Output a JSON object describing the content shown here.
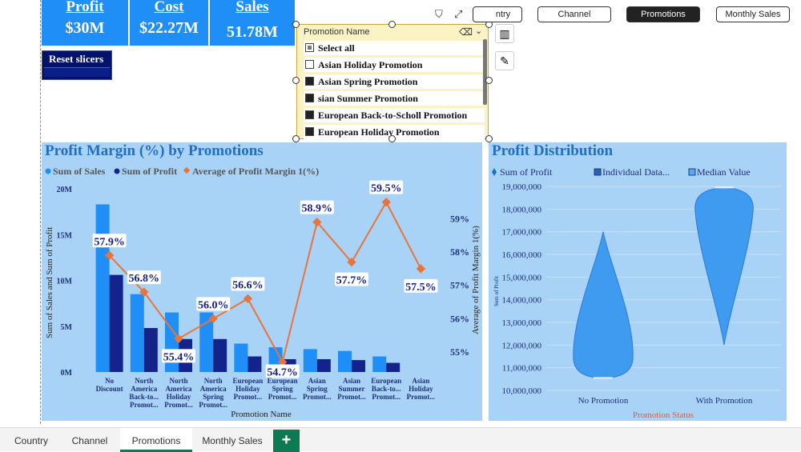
{
  "kpis": {
    "profit": {
      "title": "Profit",
      "value": "$30M"
    },
    "cost": {
      "title": "Cost",
      "value": "$22.27M"
    },
    "sales": {
      "title": "Sales",
      "value": "51.78M"
    }
  },
  "reset_label": "Reset slicers",
  "slicer": {
    "header": "Promotion Name",
    "items": [
      {
        "label": "Select all",
        "state": "partial"
      },
      {
        "label": "Asian Holiday Promotion",
        "state": "off"
      },
      {
        "label": "Asian Spring Promotion",
        "state": "on"
      },
      {
        "label": "sian Summer Promotion",
        "state": "on"
      },
      {
        "label": "European Back-to-Scholl Promotion",
        "state": "on"
      },
      {
        "label": "European Holiday Promotion",
        "state": "on"
      }
    ]
  },
  "filter_pills": [
    {
      "label": "ntry",
      "active": false
    },
    {
      "label": "Channel",
      "active": false
    },
    {
      "label": "Promotions",
      "active": true
    },
    {
      "label": "Monthly Sales",
      "active": false
    }
  ],
  "colors": {
    "sales": "#1f8ff7",
    "profit": "#13238c",
    "margin": "#e8743b",
    "panel": "#a9d3f6",
    "violin": "#3f9bf0"
  },
  "chart_data": [
    {
      "type": "bar",
      "title": "Profit Margin (%) by Promotions",
      "legend": [
        "Sum of Sales",
        "Sum of Profit",
        "Average of Profit Margin 1(%)"
      ],
      "xlabel": "Promotion Name",
      "ylabel": "Sum of Sales and Sum of Profit",
      "y2label": "Average of Profit Margin 1(%)",
      "ylim": [
        0,
        20000000
      ],
      "yticks": [
        "0M",
        "5M",
        "10M",
        "15M",
        "20M"
      ],
      "y2lim": [
        54.4,
        59.9
      ],
      "y2ticks": [
        "55%",
        "56%",
        "57%",
        "58%",
        "59%"
      ],
      "categories": [
        "No Discount",
        "North America Back-to... Promot...",
        "North America Holiday Promot...",
        "North America Spring Promot...",
        "European Holiday Promot...",
        "European Spring Promot...",
        "Asian Spring Promot...",
        "Asian Summer Promot...",
        "European Back-to... Promot...",
        "Asian Holiday Promot..."
      ],
      "series": [
        {
          "name": "Sum of Sales",
          "values": [
            18300000,
            8500000,
            6500000,
            6500000,
            3100000,
            2700000,
            2500000,
            2300000,
            1700000,
            0
          ]
        },
        {
          "name": "Sum of Profit",
          "values": [
            10600000,
            4800000,
            3600000,
            3600000,
            1700000,
            1400000,
            1400000,
            1300000,
            1000000,
            0
          ]
        },
        {
          "name": "Average of Profit Margin 1(%)",
          "values": [
            57.9,
            56.8,
            55.4,
            56.0,
            56.6,
            54.7,
            58.9,
            57.7,
            59.5,
            57.5
          ]
        }
      ],
      "data_labels": [
        "57.9%",
        "56.8%",
        "55.4%",
        "56.0%",
        "56.6%",
        "54.7%",
        "58.9%",
        "57.7%",
        "59.5%",
        "57.5%"
      ]
    },
    {
      "type": "violin",
      "title": "Profit Distribution",
      "legend": [
        "Sum of Profit",
        "Individual Data...",
        "Median Value"
      ],
      "xlabel": "Promotion Status",
      "ylabel": "Sum of Profit",
      "categories": [
        "No Promotion",
        "With Promotion"
      ],
      "ylim": [
        10000000,
        19000000
      ],
      "yticks": [
        "10,000,000",
        "11,000,000",
        "12,000,000",
        "13,000,000",
        "14,000,000",
        "15,000,000",
        "16,000,000",
        "17,000,000",
        "18,000,000",
        "19,000,000"
      ],
      "ranges": [
        {
          "min": 10550000,
          "max": 17000000,
          "median": 10550000
        },
        {
          "min": 12000000,
          "max": 18950000,
          "median": 18950000
        }
      ]
    }
  ],
  "tabs": [
    "Country",
    "Channel",
    "Promotions",
    "Monthly Sales"
  ],
  "active_tab": "Promotions",
  "add_tab_label": "+"
}
